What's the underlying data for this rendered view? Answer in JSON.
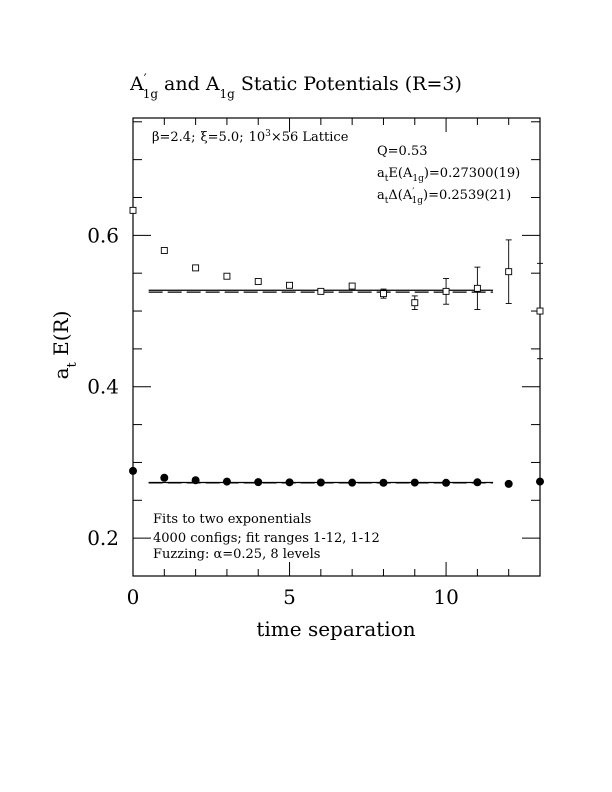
{
  "chart_data": {
    "type": "scatter",
    "title": {
      "a_prime": "A",
      "prime_mark": "′",
      "sub1": "1g",
      "mid": " and A",
      "sub2": "1g",
      "rest": " Static Potentials (R=3)"
    },
    "xlabel": "time separation",
    "ylabel": {
      "main": "a",
      "sub": "t",
      "rest": " E(R)"
    },
    "xlim": [
      0,
      13
    ],
    "ylim": [
      0.15,
      0.755
    ],
    "x_ticks": [
      0,
      5,
      10
    ],
    "x_tick_labels": [
      "0",
      "5",
      "10"
    ],
    "y_ticks": [
      0.2,
      0.4,
      0.6
    ],
    "y_tick_labels": [
      "0.2",
      "0.4",
      "0.6"
    ],
    "grid": false,
    "lattice_label": {
      "beta": "β=2.4;",
      "xi": "ξ=5.0;",
      "vol_base": "10",
      "vol_exp": "3",
      "vol_rest": "×56 Lattice"
    },
    "fit_info": {
      "q": "Q=0.53",
      "e_main": "a",
      "e_sub_t": "t",
      "e_mid": "E(A",
      "e_sub_1g": "1g",
      "e_val": ")=0.27300(19)",
      "d_main": "a",
      "d_sub_t": "t",
      "d_mid": "Δ(A",
      "d_prime": "′",
      "d_sub_1g": "1g",
      "d_val": ")=0.2539(21)"
    },
    "notes": [
      "Fits to two exponentials",
      "4000 configs; fit ranges 1-12, 1-12",
      "Fuzzing: α=0.25, 8 levels"
    ],
    "series": [
      {
        "marker": "filled-circle",
        "x": [
          0,
          1,
          2,
          3,
          4,
          5,
          6,
          7,
          8,
          9,
          10,
          11,
          12,
          13
        ],
        "y": [
          0.2888,
          0.2798,
          0.2765,
          0.2747,
          0.274,
          0.2737,
          0.2735,
          0.2733,
          0.2732,
          0.2734,
          0.2731,
          0.2738,
          0.2717,
          0.2747
        ],
        "err": [
          0,
          0,
          0,
          0,
          0,
          0,
          0,
          0,
          0,
          0,
          0,
          0,
          0,
          0
        ]
      },
      {
        "marker": "open-square",
        "x": [
          0,
          1,
          2,
          3,
          4,
          5,
          6,
          7,
          8,
          9,
          10,
          11,
          12,
          13
        ],
        "y": [
          0.633,
          0.58,
          0.557,
          0.546,
          0.539,
          0.534,
          0.526,
          0.533,
          0.523,
          0.511,
          0.526,
          0.53,
          0.552,
          0.5
        ],
        "err": [
          0,
          0,
          0,
          0,
          0,
          0,
          0,
          0,
          0.006,
          0.009,
          0.017,
          0.028,
          0.042,
          0.063
        ]
      }
    ],
    "fit_lines": [
      {
        "x": [
          0.5,
          11.5
        ],
        "y": [
          0.2735,
          0.2735
        ],
        "style": "solid"
      },
      {
        "x": [
          0.5,
          11.5
        ],
        "y": [
          0.273,
          0.273
        ],
        "style": "dashed"
      },
      {
        "x": [
          0.5,
          11.5
        ],
        "y": [
          0.5275,
          0.5275
        ],
        "style": "solid"
      },
      {
        "x": [
          0.5,
          11.5
        ],
        "y": [
          0.525,
          0.525
        ],
        "style": "dashed"
      }
    ]
  }
}
